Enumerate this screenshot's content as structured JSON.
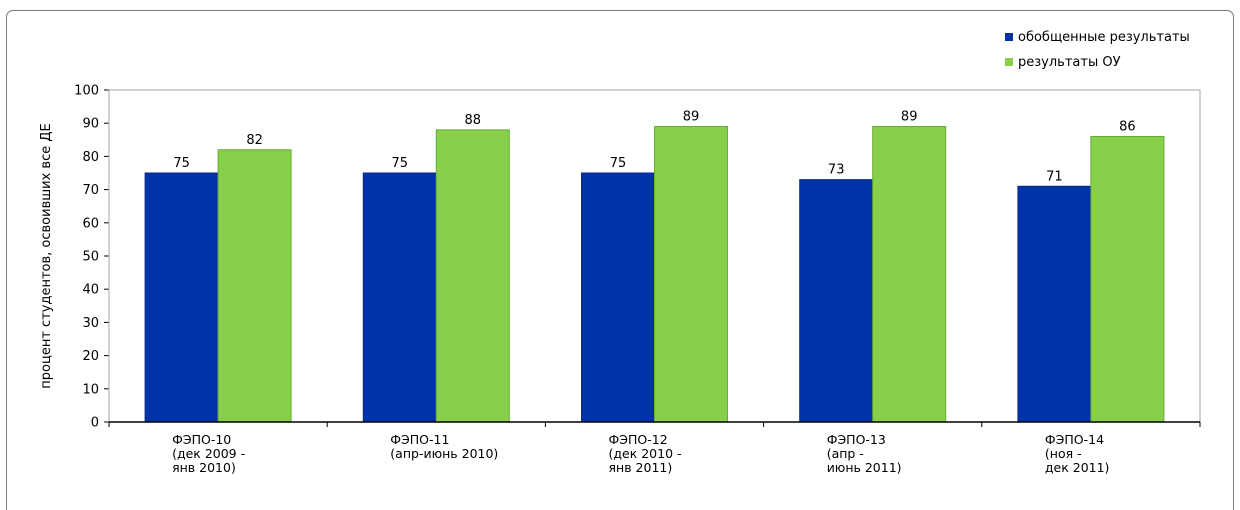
{
  "chart_data": {
    "type": "bar",
    "title": "",
    "xlabel": "",
    "ylabel": "процент студентов, освоивших все ДЕ",
    "ylim": [
      0,
      100
    ],
    "yticks": [
      0,
      10,
      20,
      30,
      40,
      50,
      60,
      70,
      80,
      90,
      100
    ],
    "grid": false,
    "legend_position": "top-right",
    "categories": [
      [
        "ФЭПО-10",
        "(дек 2009 -",
        "янв 2010)"
      ],
      [
        "ФЭПО-11",
        "(апр-июнь 2010)"
      ],
      [
        "ФЭПО-12",
        "(дек 2010 -",
        "янв 2011)"
      ],
      [
        "ФЭПО-13",
        "(апр -",
        "июнь 2011)"
      ],
      [
        "ФЭПО-14",
        "(ноя -",
        "дек 2011)"
      ]
    ],
    "series": [
      {
        "name": "обобщенные результаты",
        "color": "#0033a8",
        "values": [
          75,
          75,
          75,
          73,
          71
        ]
      },
      {
        "name": "результаты ОУ",
        "color": "#88d04a",
        "values": [
          82,
          88,
          89,
          89,
          86
        ]
      }
    ]
  }
}
